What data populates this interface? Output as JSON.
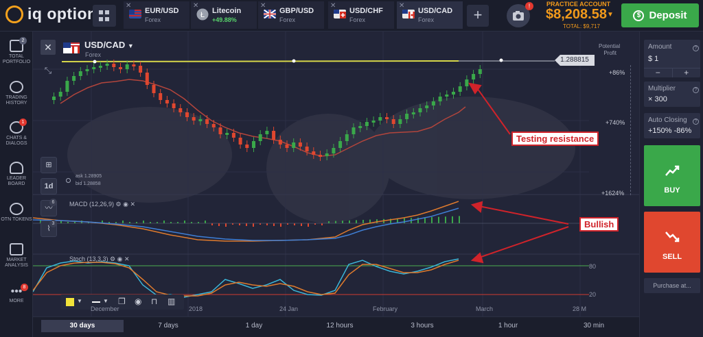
{
  "app": {
    "logo_text": "iq option"
  },
  "tabs": [
    {
      "name": "EUR/USD",
      "sub": "Forex",
      "flag": "eu"
    },
    {
      "name": "Litecoin",
      "sub": "+49.88%",
      "flag": "ltc"
    },
    {
      "name": "GBP/USD",
      "sub": "Forex",
      "flag": "gb"
    },
    {
      "name": "USD/CHF",
      "sub": "Forex",
      "flag": "ch"
    },
    {
      "name": "USD/CAD",
      "sub": "Forex",
      "flag": "ca"
    }
  ],
  "account": {
    "label": "PRACTICE ACCOUNT",
    "balance": "$8,208.58",
    "total": "TOTAL: $9,717",
    "badge": "!"
  },
  "deposit_label": "Deposit",
  "sidebar": [
    {
      "label": "TOTAL PORTFOLIO",
      "badge": "2"
    },
    {
      "label": "TRADING HISTORY",
      "badge": ""
    },
    {
      "label": "CHATS & DIALOGS",
      "badge": "1"
    },
    {
      "label": "LEADER BOARD",
      "badge": ""
    },
    {
      "label": "OTN TOKENS",
      "badge": ""
    },
    {
      "label": "MARKET ANALYSIS",
      "badge": ""
    },
    {
      "label": "MORE",
      "badge": "8"
    }
  ],
  "chart": {
    "pair": "USD/CAD",
    "market": "Forex",
    "ask": "ask 1.28905",
    "bid": "bid 1.28858",
    "current_price": "1.288815",
    "potential_profit_label": "Potential Profit",
    "profit_levels": [
      "+86%",
      "+740%",
      "+1624%"
    ],
    "macd_label": "MACD (12,26,9)",
    "stoch_label": "Stoch (13,3,3)",
    "stoch_levels": [
      "80",
      "20"
    ],
    "timeframe_button": "1d",
    "macd_badge": "6",
    "stoch_badge": "3",
    "x_ticks": [
      "December",
      "2018",
      "24 Jan",
      "February",
      "March",
      "28 M"
    ]
  },
  "annotations": {
    "resistance": "Testing resistance",
    "bullish": "Bullish"
  },
  "timeframes": [
    "30 days",
    "7 days",
    "1 day",
    "12 hours",
    "3 hours",
    "1 hour",
    "30 min"
  ],
  "right_panel": {
    "amount_label": "Amount",
    "amount_value": "$ 1",
    "multiplier_label": "Multiplier",
    "multiplier_value": "× 300",
    "auto_close_label": "Auto Closing",
    "auto_close_value": "+150% -86%",
    "buy_label": "BUY",
    "sell_label": "SELL",
    "purchase_label": "Purchase at..."
  },
  "colors": {
    "green": "#3aa84a",
    "red": "#e0472f",
    "orange": "#f29a1b",
    "resistance_line": "#d8d84a"
  }
}
